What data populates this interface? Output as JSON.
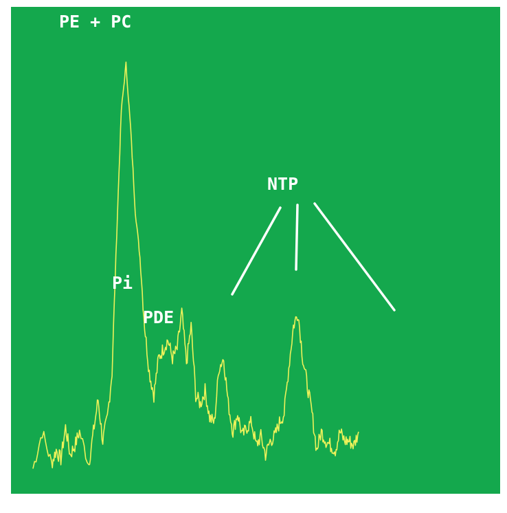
{
  "colors": {
    "background": "#14a84d",
    "trace": "#eef25a",
    "labels": "#ffffff",
    "page": "#ffffff"
  },
  "chart_data": {
    "type": "line",
    "title": "",
    "xlabel": "",
    "ylabel": "",
    "grid": false,
    "legend": "none",
    "xlim": [
      0,
      100
    ],
    "ylim": [
      0,
      100
    ],
    "series": [
      {
        "values": [
          [
            0,
            4
          ],
          [
            2,
            12
          ],
          [
            4,
            5
          ],
          [
            5,
            8
          ],
          [
            6,
            6
          ],
          [
            7,
            13
          ],
          [
            8,
            7
          ],
          [
            9,
            9
          ],
          [
            10,
            12
          ],
          [
            12,
            5
          ],
          [
            13,
            12
          ],
          [
            14,
            19
          ],
          [
            15,
            10
          ],
          [
            16,
            15
          ],
          [
            17,
            25
          ],
          [
            18,
            55
          ],
          [
            19,
            82
          ],
          [
            20,
            92
          ],
          [
            21,
            78
          ],
          [
            22,
            60
          ],
          [
            23,
            50
          ],
          [
            24,
            35
          ],
          [
            25,
            25
          ],
          [
            26,
            20
          ],
          [
            27,
            28
          ],
          [
            28,
            30
          ],
          [
            29,
            32
          ],
          [
            30,
            28
          ],
          [
            31,
            30
          ],
          [
            32,
            38
          ],
          [
            33,
            27
          ],
          [
            34,
            35
          ],
          [
            35,
            20
          ],
          [
            36,
            18
          ],
          [
            37,
            21
          ],
          [
            38,
            15
          ],
          [
            39,
            14
          ],
          [
            40,
            26
          ],
          [
            41,
            28
          ],
          [
            42,
            18
          ],
          [
            43,
            12
          ],
          [
            44,
            16
          ],
          [
            45,
            11
          ],
          [
            46,
            13
          ],
          [
            47,
            14
          ],
          [
            48,
            9
          ],
          [
            49,
            11
          ],
          [
            50,
            7
          ],
          [
            51,
            10
          ],
          [
            52,
            11
          ],
          [
            53,
            14
          ],
          [
            54,
            16
          ],
          [
            55,
            26
          ],
          [
            56,
            35
          ],
          [
            57,
            38
          ],
          [
            58,
            28
          ],
          [
            59,
            22
          ],
          [
            60,
            16
          ],
          [
            61,
            8
          ],
          [
            62,
            12
          ],
          [
            63,
            10
          ],
          [
            64,
            9
          ],
          [
            65,
            8
          ],
          [
            66,
            12
          ],
          [
            67,
            10
          ],
          [
            68,
            10
          ],
          [
            69,
            9
          ],
          [
            70,
            12
          ]
        ]
      }
    ],
    "annotations": [
      {
        "text": "PE + PC"
      },
      {
        "text": "Pi"
      },
      {
        "text": "PDE"
      },
      {
        "text": "NTP"
      }
    ]
  }
}
